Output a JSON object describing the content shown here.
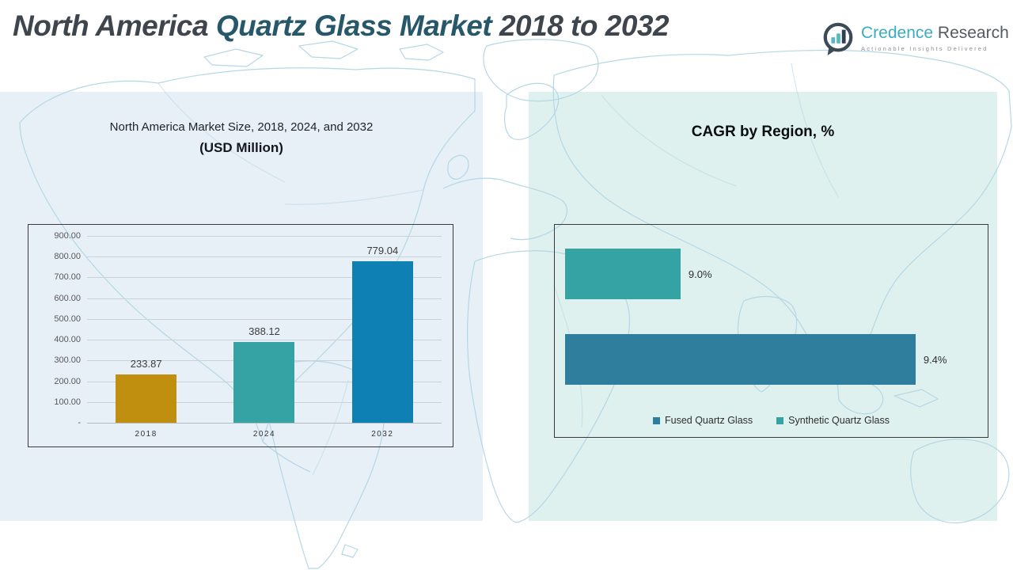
{
  "header": {
    "title_prefix": "North America ",
    "title_highlight": "Quartz Glass Market",
    "title_suffix": " 2018 to 2032"
  },
  "logo": {
    "name_primary": "Credence",
    "name_secondary": " Research",
    "tagline": "Actionable Insights Delivered"
  },
  "left_panel": {
    "title_line1": "North America Market Size, 2018, 2024, and 2032",
    "title_line2": "(USD Million)"
  },
  "right_panel": {
    "title": "CAGR by Region, %"
  },
  "colors": {
    "accent_teal": "#26586a",
    "panel_left_bg": "#e7eff7",
    "panel_right_bg": "#def1ee",
    "map_stroke": "#b6d7e5"
  },
  "chart_data": [
    {
      "type": "bar",
      "title": "North America Market Size, 2018, 2024, and 2032 (USD Million)",
      "categories": [
        "2018",
        "2024",
        "2032"
      ],
      "values": [
        233.87,
        388.12,
        779.04
      ],
      "data_labels": [
        "233.87",
        "388.12",
        "779.04"
      ],
      "bar_colors": [
        "#C08F10",
        "#35A3A3",
        "#0E80B4"
      ],
      "xlabel": "",
      "ylabel": "",
      "ylim": [
        0,
        900
      ],
      "ytick_step": 100,
      "ytick_labels": [
        "900.00",
        "800.00",
        "700.00",
        "600.00",
        "500.00",
        "400.00",
        "300.00",
        "200.00",
        "100.00",
        "-"
      ],
      "grid": true,
      "legend_position": "none"
    },
    {
      "type": "bar",
      "orientation": "horizontal",
      "title": "CAGR by Region, %",
      "series": [
        {
          "name": "Synthetic Quartz Glass",
          "value": 9.0,
          "label": "9.0%",
          "color": "#35A3A3",
          "display_width_pct": 28
        },
        {
          "name": "Fused Quartz Glass",
          "value": 9.4,
          "label": "9.4%",
          "color": "#2F7E9D",
          "display_width_pct": 85
        }
      ],
      "legend": [
        {
          "label": "Fused Quartz Glass",
          "color": "#2F7E9D"
        },
        {
          "label": "Synthetic Quartz Glass",
          "color": "#35A3A3"
        }
      ],
      "legend_position": "bottom",
      "grid": false
    }
  ]
}
